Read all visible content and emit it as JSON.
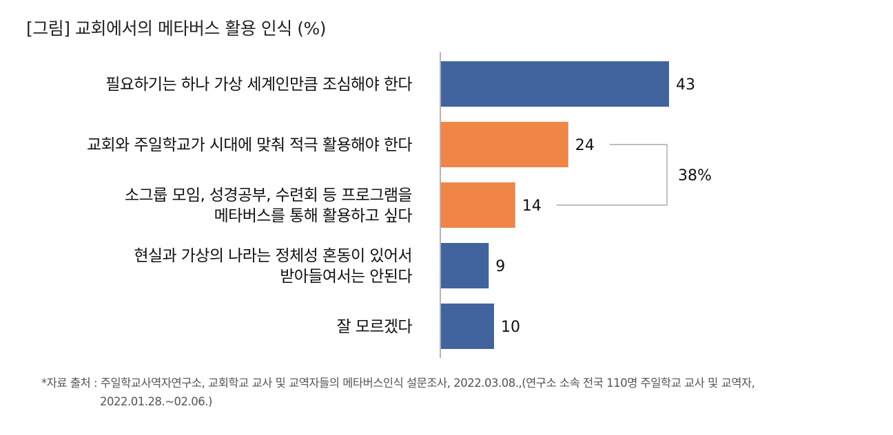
{
  "title": "[그림] 교회에서의 메타버스 활용 인식 (%)",
  "chart_data": {
    "type": "bar",
    "orientation": "horizontal",
    "categories": [
      [
        "필요하기는 하나 가상 세계인만큼 조심해야 한다"
      ],
      [
        "교회와 주일학교가 시대에 맞춰 적극 활용해야 한다"
      ],
      [
        "소그룹 모임, 성경공부, 수련회 등 프로그램을",
        "메타버스를 통해 활용하고 싶다"
      ],
      [
        "현실과 가상의 나라는 정체성 혼동이 있어서",
        "받아들여서는 안된다"
      ],
      [
        "잘 모르겠다"
      ]
    ],
    "values": [
      43,
      24,
      14,
      9,
      10
    ],
    "value_labels": [
      "43",
      "24",
      "14",
      "9",
      "10"
    ],
    "colors": [
      "#41649f",
      "#ef8648",
      "#ef8648",
      "#41649f",
      "#41649f"
    ],
    "xlim": [
      0,
      50
    ],
    "annotation": {
      "label": "38%",
      "spans_categories": [
        1,
        2
      ]
    },
    "grid": false,
    "legend": "none"
  },
  "footnote": {
    "line1": "*자료 출처 : 주일학교사역자연구소, 교회학교 교사 및 교역자들의 메타버스인식 설문조사, 2022.03.08.,(연구소 소속 전국 110명 주일학교 교사 및 교역자,",
    "line2": "2022.01.28.~02.06.)"
  }
}
